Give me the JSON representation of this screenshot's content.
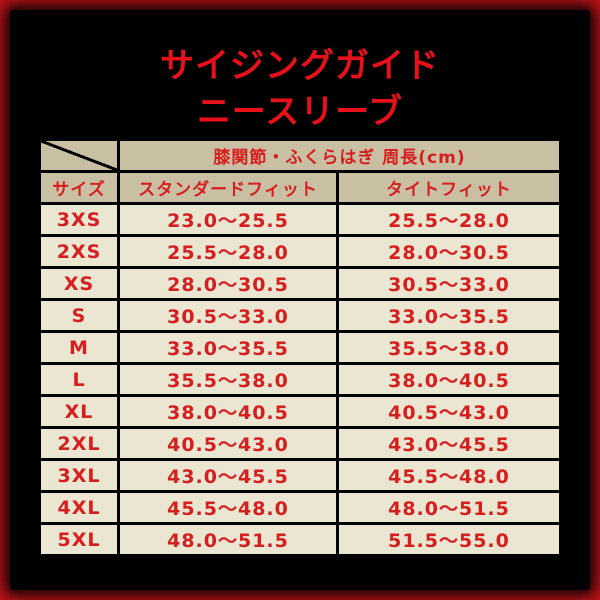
{
  "title_line1": "サイジングガイド",
  "title_line2": "ニースリーブ",
  "table": {
    "group_header": "膝関節・ふくらはぎ 周長(cm)",
    "columns": [
      "サイズ",
      "スタンダードフィット",
      "タイトフィット"
    ],
    "rows": [
      [
        "3XS",
        "23.0～25.5",
        "25.5～28.0"
      ],
      [
        "2XS",
        "25.5～28.0",
        "28.0～30.5"
      ],
      [
        "XS",
        "28.0～30.5",
        "30.5～33.0"
      ],
      [
        "S",
        "30.5～33.0",
        "33.0～35.5"
      ],
      [
        "M",
        "33.0～35.5",
        "35.5～38.0"
      ],
      [
        "L",
        "35.5～38.0",
        "38.0～40.5"
      ],
      [
        "XL",
        "38.0～40.5",
        "40.5～43.0"
      ],
      [
        "2XL",
        "40.5～43.0",
        "43.0～45.5"
      ],
      [
        "3XL",
        "43.0～45.5",
        "45.5～48.0"
      ],
      [
        "4XL",
        "45.5～48.0",
        "48.0～51.5"
      ],
      [
        "5XL",
        "48.0～51.5",
        "51.5～55.0"
      ]
    ]
  },
  "colors": {
    "accent": "#e8101a",
    "header_bg": "#c9c0a4",
    "row_bg": "#ebe6d2",
    "background": "#000000"
  }
}
